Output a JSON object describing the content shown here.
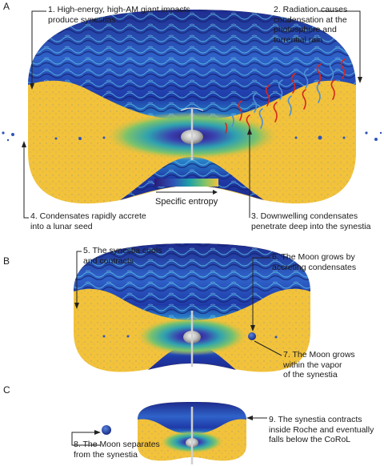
{
  "panels": [
    {
      "letter": "A"
    },
    {
      "letter": "B"
    },
    {
      "letter": "C"
    }
  ],
  "annotations": {
    "n1": "1. High-energy, high-AM giant impacts\nproduce synestias",
    "n2": "2. Radiation causes\ncondensation at the\nphotosphere and\ntorrential rain",
    "n3": "3. Downwelling condensates\npenetrate deep into the synestia",
    "n4": "4. Condensates rapidly accrete\ninto a lunar seed",
    "n5": "5. The synestia cools\nand contracts",
    "n6": "6. The Moon grows by\naccreting condensates",
    "n7": "7. The Moon grows\nwithin the vapor\nof the synestia",
    "n8": "8. The Moon separates\nfrom the synestia",
    "n9": "9. The synestia contracts\ninside Roche and eventually\nfalls below the CoRoL"
  },
  "colorbar": {
    "label": "Specific entropy",
    "colors": [
      "#2b1a78",
      "#2f54b8",
      "#1fa2a8",
      "#7cc36b",
      "#f2c23a"
    ]
  },
  "colors": {
    "vapor_dark": "#1d2a8c",
    "vapor_mid": "#2f63c9",
    "vapor_light": "#5ec7e8",
    "condensate": "#f2c23a",
    "rain_red": "#d7261e",
    "rain_blue": "#4a8fd6",
    "axis": "#cfcfcf"
  }
}
